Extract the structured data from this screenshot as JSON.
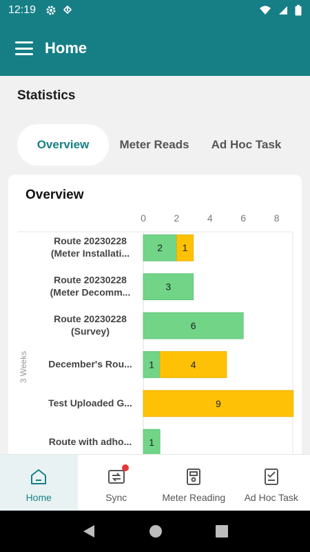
{
  "status_bar": {
    "time": "12:19"
  },
  "app_bar": {
    "title": "Home"
  },
  "statistics": {
    "title": "Statistics",
    "tabs": [
      {
        "label": "Overview",
        "active": true
      },
      {
        "label": "Meter Reads",
        "active": false
      },
      {
        "label": "Ad Hoc Task",
        "active": false
      }
    ]
  },
  "overview_card": {
    "title": "Overview"
  },
  "chart_data": {
    "type": "bar",
    "orientation": "horizontal",
    "stacked": true,
    "axis_side_label": "3 Weeks",
    "x_ticks": [
      "0",
      "2",
      "4",
      "6",
      "8"
    ],
    "xlim": [
      0,
      9
    ],
    "categories": [
      [
        "Route 20230228",
        "(Meter Installati..."
      ],
      [
        "Route 20230228",
        "(Meter Decomm..."
      ],
      [
        "Route 20230228",
        "(Survey)"
      ],
      [
        "December's Rou..."
      ],
      [
        "Test Uploaded G..."
      ],
      [
        "Route with adho..."
      ]
    ],
    "series": [
      {
        "color": "#71d487",
        "values": [
          2,
          3,
          6,
          1,
          0,
          1
        ]
      },
      {
        "color": "#ffc105",
        "values": [
          1,
          0,
          0,
          4,
          9,
          0
        ]
      }
    ]
  },
  "bottom_nav": [
    {
      "label": "Home",
      "icon": "home-icon",
      "active": true
    },
    {
      "label": "Sync",
      "icon": "sync-icon",
      "active": false
    },
    {
      "label": "Meter Reading",
      "icon": "meter-reading-icon",
      "active": false
    },
    {
      "label": "Ad Hoc Task",
      "icon": "ad-hoc-task-icon",
      "active": false
    }
  ],
  "colors": {
    "primary": "#167f86",
    "green_series": "#71d487",
    "yellow_series": "#ffc105",
    "badge": "#e53935"
  }
}
